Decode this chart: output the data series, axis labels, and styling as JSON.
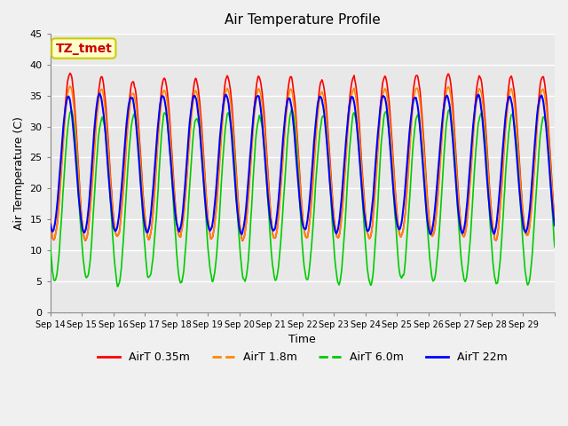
{
  "title": "Air Temperature Profile",
  "xlabel": "Time",
  "ylabel": "Air Termperature (C)",
  "ylim": [
    0,
    45
  ],
  "background_color": "#f0f0f0",
  "plot_bg_color": "#e8e8e8",
  "grid_color": "#ffffff",
  "annotation_text": "TZ_tmet",
  "annotation_bg": "#ffffcc",
  "annotation_border": "#cccc00",
  "annotation_text_color": "#cc0000",
  "colors": {
    "red": "#ff0000",
    "orange": "#ff8800",
    "green": "#00cc00",
    "blue": "#0000ff"
  },
  "legend_labels": [
    "AirT 0.35m",
    "AirT 1.8m",
    "AirT 6.0m",
    "AirT 22m"
  ],
  "xtick_labels": [
    "Sep 14",
    "Sep 15",
    "Sep 16",
    "Sep 17",
    "Sep 18",
    "Sep 19",
    "Sep 20",
    "Sep 21",
    "Sep 22",
    "Sep 23",
    "Sep 24",
    "Sep 25",
    "Sep 26",
    "Sep 27",
    "Sep 28",
    "Sep 29"
  ],
  "ytick_values": [
    0,
    5,
    10,
    15,
    20,
    25,
    30,
    35,
    40,
    45
  ],
  "n_days": 16,
  "points_per_day": 48
}
